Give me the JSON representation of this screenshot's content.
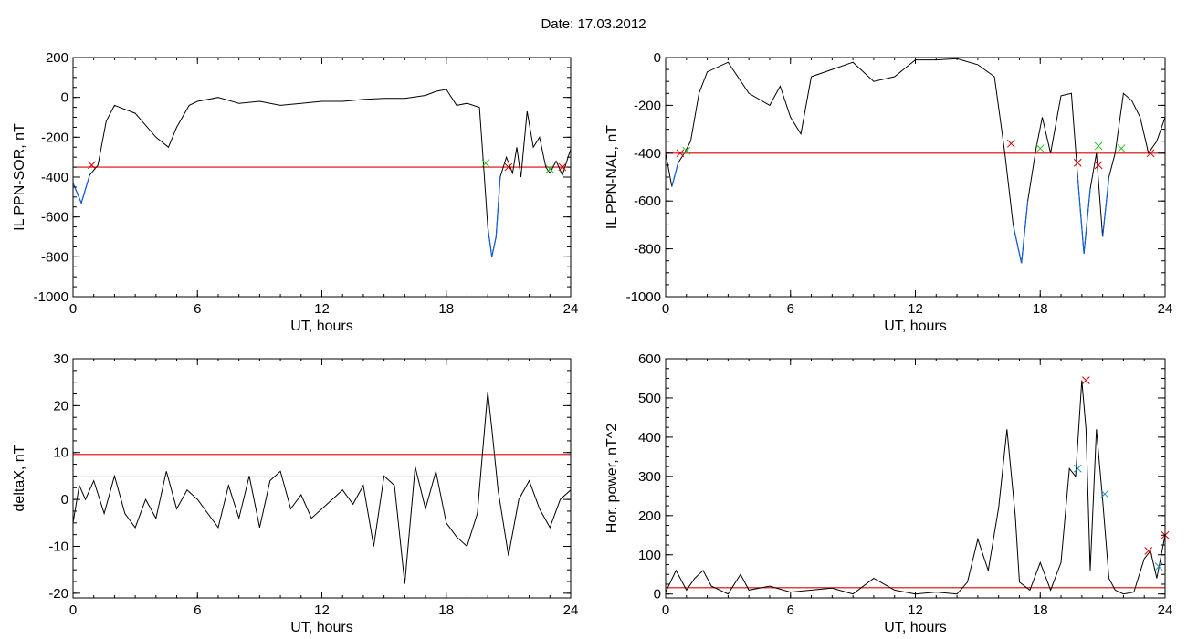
{
  "page": {
    "title": "Date:  17.03.2012"
  },
  "colors": {
    "trace": "#000000",
    "threshold": "#e00000",
    "secondary": "#1a8fc0",
    "highlight": "#1060e0",
    "marker_red": "#d00000",
    "marker_green": "#20c020",
    "marker_blue": "#1a8fc0"
  },
  "chart_data": [
    {
      "type": "line",
      "xlabel": "UT, hours",
      "ylabel": "IL PPN-SOR, nT",
      "xlim": [
        0,
        24
      ],
      "ylim": [
        -1000,
        200
      ],
      "xticks": [
        0,
        6,
        12,
        18,
        24
      ],
      "yticks": [
        -1000,
        -800,
        -600,
        -400,
        -200,
        0,
        200
      ],
      "series": [
        {
          "x": [
            0,
            0.4,
            0.8,
            1.2,
            1.6,
            2.0,
            3.0,
            4.0,
            4.6,
            5.0,
            5.6,
            6.0,
            7.0,
            8.0,
            9.0,
            10.0,
            11.0,
            12.0,
            13.0,
            14.0,
            15.0,
            16.0,
            17.0,
            17.5,
            18.0,
            18.5,
            19.0,
            19.6,
            19.8,
            20.0,
            20.2,
            20.4,
            20.6,
            20.9,
            21.2,
            21.4,
            21.6,
            21.9,
            22.2,
            22.5,
            22.8,
            23.0,
            23.3,
            23.6,
            24.0
          ],
          "y": [
            -430,
            -530,
            -390,
            -340,
            -120,
            -40,
            -80,
            -200,
            -250,
            -150,
            -40,
            -20,
            0,
            -30,
            -20,
            -40,
            -30,
            -20,
            -20,
            -10,
            -5,
            -5,
            10,
            30,
            40,
            -40,
            -30,
            -50,
            -340,
            -650,
            -800,
            -700,
            -400,
            -300,
            -380,
            -250,
            -400,
            -70,
            -250,
            -200,
            -350,
            -380,
            -320,
            -390,
            -260
          ]
        }
      ],
      "thresholds": [
        {
          "y": -350,
          "color": "#e00000"
        }
      ],
      "markers": [
        {
          "x": 0.9,
          "y": -340
        },
        {
          "x": 19.9,
          "y": -330
        },
        {
          "x": 21.0,
          "y": -350
        },
        {
          "x": 23.0,
          "y": -360
        },
        {
          "x": 23.6,
          "y": -350
        }
      ]
    },
    {
      "type": "line",
      "xlabel": "UT, hours",
      "ylabel": "IL PPN-NAL, nT",
      "xlim": [
        0,
        24
      ],
      "ylim": [
        -1000,
        0
      ],
      "xticks": [
        0,
        6,
        12,
        18,
        24
      ],
      "yticks": [
        -1000,
        -800,
        -600,
        -400,
        -200,
        0
      ],
      "series": [
        {
          "x": [
            0,
            0.3,
            0.6,
            0.9,
            1.2,
            1.6,
            2.0,
            3.0,
            4.0,
            5.0,
            5.5,
            6.0,
            6.5,
            7.0,
            8.0,
            9.0,
            10.0,
            11.0,
            12.0,
            13.0,
            14.0,
            15.0,
            15.8,
            16.3,
            16.7,
            17.1,
            17.4,
            17.8,
            18.1,
            18.5,
            19.0,
            19.5,
            19.8,
            20.1,
            20.4,
            20.7,
            21.0,
            21.3,
            21.6,
            22.0,
            22.4,
            22.8,
            23.2,
            23.6,
            24.0
          ],
          "y": [
            -400,
            -540,
            -440,
            -400,
            -350,
            -150,
            -60,
            -20,
            -150,
            -200,
            -120,
            -250,
            -320,
            -80,
            -50,
            -20,
            -100,
            -80,
            -10,
            -10,
            -5,
            -30,
            -80,
            -400,
            -700,
            -860,
            -600,
            -380,
            -250,
            -400,
            -160,
            -150,
            -500,
            -820,
            -550,
            -400,
            -750,
            -500,
            -400,
            -150,
            -180,
            -250,
            -400,
            -350,
            -250
          ]
        }
      ],
      "thresholds": [
        {
          "y": -400,
          "color": "#e00000"
        }
      ],
      "markers": [
        {
          "x": 0.7,
          "y": -400
        },
        {
          "x": 1.0,
          "y": -390
        },
        {
          "x": 16.6,
          "y": -360
        },
        {
          "x": 18.0,
          "y": -380
        },
        {
          "x": 19.8,
          "y": -440
        },
        {
          "x": 20.8,
          "y": -370
        },
        {
          "x": 20.8,
          "y": -450
        },
        {
          "x": 21.9,
          "y": -380
        },
        {
          "x": 23.3,
          "y": -400
        }
      ]
    },
    {
      "type": "line",
      "xlabel": "UT, hours",
      "ylabel": "deltaX, nT",
      "xlim": [
        0,
        24
      ],
      "ylim": [
        -21,
        30
      ],
      "xticks": [
        0,
        6,
        12,
        18,
        24
      ],
      "yticks": [
        -20,
        -10,
        0,
        10,
        20,
        30
      ],
      "series": [
        {
          "x": [
            0,
            0.3,
            0.6,
            1.0,
            1.5,
            2.0,
            2.5,
            3.0,
            3.5,
            4.0,
            4.5,
            5.0,
            5.5,
            6.0,
            6.5,
            7.0,
            7.5,
            8.0,
            8.5,
            9.0,
            9.5,
            10.0,
            10.5,
            11.0,
            11.5,
            12.0,
            12.5,
            13.0,
            13.5,
            14.0,
            14.5,
            15.0,
            15.5,
            16.0,
            16.5,
            17.0,
            17.5,
            18.0,
            18.5,
            19.0,
            19.5,
            20.0,
            20.2,
            20.5,
            21.0,
            21.5,
            22.0,
            22.5,
            23.0,
            23.5,
            24.0
          ],
          "y": [
            -5,
            3,
            0,
            4,
            -3,
            5,
            -3,
            -6,
            0,
            -4,
            6,
            -2,
            2,
            0,
            -3,
            -6,
            3,
            -4,
            5,
            -6,
            4,
            6,
            -2,
            1,
            -4,
            -2,
            0,
            2,
            -1,
            3,
            -10,
            5,
            3,
            -18,
            7,
            -2,
            6,
            -5,
            -8,
            -10,
            -3,
            23,
            15,
            2,
            -12,
            0,
            4,
            -2,
            -6,
            0,
            2
          ]
        }
      ],
      "thresholds": [
        {
          "y": 9.6,
          "color": "#e00000"
        },
        {
          "y": 4.8,
          "color": "#1a8fc0"
        }
      ],
      "markers": []
    },
    {
      "type": "line",
      "xlabel": "UT, hours",
      "ylabel": "Hor. power, nT^2",
      "xlim": [
        0,
        24
      ],
      "ylim": [
        -10,
        600
      ],
      "xticks": [
        0,
        6,
        12,
        18,
        24
      ],
      "yticks": [
        0,
        100,
        200,
        300,
        400,
        500,
        600
      ],
      "series": [
        {
          "x": [
            0,
            0.5,
            1.0,
            1.4,
            1.8,
            2.2,
            3.0,
            3.6,
            4.0,
            5.0,
            6.0,
            7.0,
            8.0,
            9.0,
            10.0,
            11.0,
            12.0,
            13.0,
            14.0,
            14.5,
            15.0,
            15.5,
            16.0,
            16.4,
            16.8,
            17.0,
            17.5,
            18.0,
            18.5,
            19.0,
            19.4,
            19.7,
            20.0,
            20.2,
            20.4,
            20.7,
            21.0,
            21.3,
            21.6,
            22.0,
            22.5,
            23.0,
            23.3,
            23.6,
            24.0
          ],
          "y": [
            5,
            60,
            10,
            40,
            60,
            20,
            0,
            50,
            10,
            20,
            5,
            10,
            15,
            0,
            40,
            10,
            0,
            5,
            0,
            30,
            140,
            60,
            220,
            420,
            200,
            30,
            10,
            80,
            10,
            80,
            320,
            300,
            545,
            420,
            60,
            420,
            240,
            40,
            10,
            0,
            5,
            90,
            110,
            40,
            150
          ]
        }
      ],
      "thresholds": [
        {
          "y": 16,
          "color": "#e00000"
        }
      ],
      "markers": [
        {
          "x": 19.8,
          "y": 320
        },
        {
          "x": 20.2,
          "y": 545
        },
        {
          "x": 21.1,
          "y": 255
        },
        {
          "x": 23.2,
          "y": 110
        },
        {
          "x": 23.7,
          "y": 70
        },
        {
          "x": 24.0,
          "y": 150
        }
      ]
    }
  ]
}
